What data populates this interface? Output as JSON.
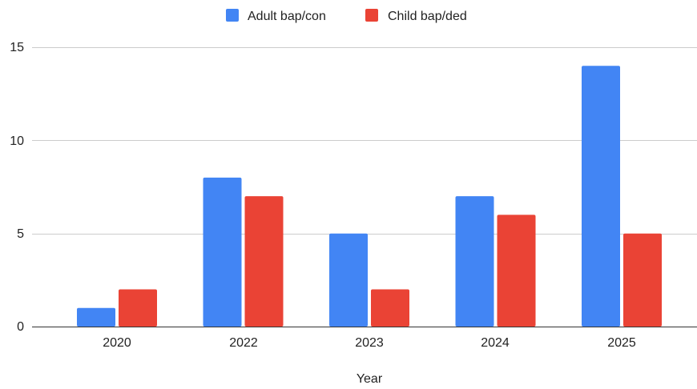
{
  "chart_data": {
    "type": "bar",
    "title": "",
    "xlabel": "Year",
    "ylabel": "",
    "categories": [
      "2020",
      "2022",
      "2023",
      "2024",
      "2025"
    ],
    "series": [
      {
        "name": "Adult bap/con",
        "values": [
          1,
          8,
          5,
          7,
          14
        ],
        "color": "#4285F4"
      },
      {
        "name": "Child bap/ded",
        "values": [
          2,
          7,
          2,
          6,
          5
        ],
        "color": "#EA4335"
      }
    ],
    "ylim": [
      0,
      15
    ],
    "yticks": [
      "0",
      "5",
      "10",
      "15"
    ],
    "grid": true,
    "legend_position": "top-center"
  }
}
